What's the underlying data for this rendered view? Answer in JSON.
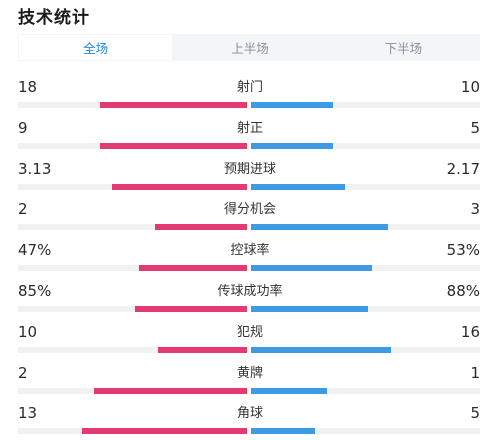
{
  "title": "技术统计",
  "tabs": [
    {
      "label": "全场",
      "active": true
    },
    {
      "label": "上半场",
      "active": false
    },
    {
      "label": "下半场",
      "active": false
    }
  ],
  "colors": {
    "home": "#e23b74",
    "away": "#3d9be6",
    "accent": "#1e88e5"
  },
  "stats": [
    {
      "label": "射门",
      "home": "18",
      "away": "10",
      "home_fill": 0.64,
      "away_fill": 0.36
    },
    {
      "label": "射正",
      "home": "9",
      "away": "5",
      "home_fill": 0.64,
      "away_fill": 0.36
    },
    {
      "label": "预期进球",
      "home": "3.13",
      "away": "2.17",
      "home_fill": 0.59,
      "away_fill": 0.41
    },
    {
      "label": "得分机会",
      "home": "2",
      "away": "3",
      "home_fill": 0.4,
      "away_fill": 0.6
    },
    {
      "label": "控球率",
      "home": "47%",
      "away": "53%",
      "home_fill": 0.47,
      "away_fill": 0.53
    },
    {
      "label": "传球成功率",
      "home": "85%",
      "away": "88%",
      "home_fill": 0.49,
      "away_fill": 0.51
    },
    {
      "label": "犯规",
      "home": "10",
      "away": "16",
      "home_fill": 0.39,
      "away_fill": 0.61
    },
    {
      "label": "黄牌",
      "home": "2",
      "away": "1",
      "home_fill": 0.67,
      "away_fill": 0.33
    },
    {
      "label": "角球",
      "home": "13",
      "away": "5",
      "home_fill": 0.72,
      "away_fill": 0.28
    }
  ]
}
